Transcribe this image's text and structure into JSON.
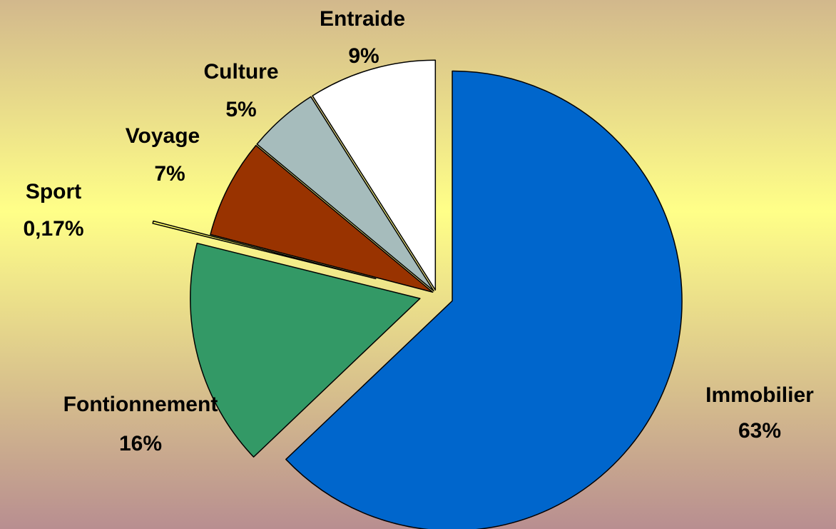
{
  "chart_data": {
    "type": "pie",
    "categories": [
      "Immobilier",
      "Fontionnement",
      "Sport",
      "Voyage",
      "Culture",
      "Entraide"
    ],
    "values": [
      63,
      16,
      0.17,
      7,
      5,
      9
    ],
    "value_labels": [
      "63%",
      "16%",
      "0,17%",
      "7%",
      "5%",
      "9%"
    ],
    "colors": [
      "#0066cc",
      "#339966",
      "#ffff66",
      "#993300",
      "#a6bcbc",
      "#ffffff"
    ]
  }
}
